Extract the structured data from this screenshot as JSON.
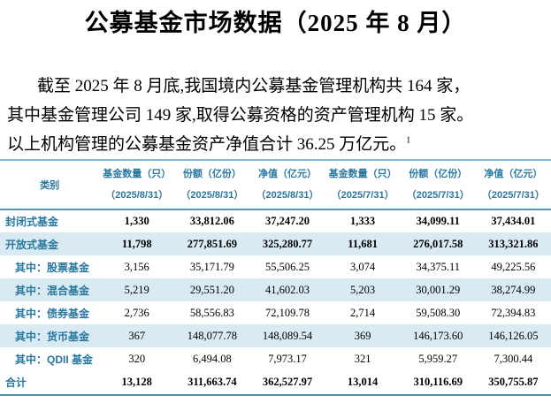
{
  "title": "公募基金市场数据（2025 年 8 月）",
  "paragraph": {
    "lines": [
      "截至 2025 年 8 月底,我国境内公募基金管理机构共 164 家，",
      "其中基金管理公司 149 家,取得公募资格的资产管理机构 15 家。",
      "以上机构管理的公募基金资产净值合计 36.25 万亿元。"
    ],
    "footnote_marker": "1"
  },
  "table": {
    "category_header": "类别",
    "columns": [
      {
        "label": "基金数量（只）",
        "date": "（2025/8/31）"
      },
      {
        "label": "份额（亿份）",
        "date": "（2025/8/31）"
      },
      {
        "label": "净值（亿元）",
        "date": "（2025/8/31）"
      },
      {
        "label": "基金数量（只）",
        "date": "（2025/7/31）"
      },
      {
        "label": "份额（亿份）",
        "date": "（2025/7/31）"
      },
      {
        "label": "净值（亿元）",
        "date": "（2025/7/31）"
      }
    ],
    "rows": [
      {
        "category": "封闭式基金",
        "values": [
          "1,330",
          "33,812.06",
          "37,247.20",
          "1,333",
          "34,099.11",
          "37,434.01"
        ]
      },
      {
        "category": "开放式基金",
        "values": [
          "11,798",
          "277,851.69",
          "325,280.77",
          "11,681",
          "276,017.58",
          "313,321.86"
        ]
      },
      {
        "category": "其中：股票基金",
        "values": [
          "3,156",
          "35,171.79",
          "55,506.25",
          "3,074",
          "34,375.11",
          "49,225.56"
        ]
      },
      {
        "category": "其中：混合基金",
        "values": [
          "5,219",
          "29,551.20",
          "41,602.03",
          "5,203",
          "30,001.29",
          "38,274.99"
        ]
      },
      {
        "category": "其中：债券基金",
        "values": [
          "2,736",
          "58,556.83",
          "72,109.78",
          "2,714",
          "59,508.30",
          "72,394.83"
        ]
      },
      {
        "category": "其中：货币基金",
        "values": [
          "367",
          "148,077.78",
          "148,089.54",
          "369",
          "146,173.60",
          "146,126.05"
        ]
      },
      {
        "category": "其中：QDII 基金",
        "values": [
          "320",
          "6,494.08",
          "7,973.17",
          "321",
          "5,959.27",
          "7,300.44"
        ]
      },
      {
        "category": "合计",
        "values": [
          "13,128",
          "311,663.74",
          "362,527.97",
          "13,014",
          "310,116.69",
          "350,755.87"
        ]
      }
    ]
  },
  "colors": {
    "accent_teal_text": "#2878a0",
    "row_highlight_bg": "#d9eaf2",
    "table_top_border": "#79bcd4",
    "table_rule": "#4e9ab8"
  }
}
